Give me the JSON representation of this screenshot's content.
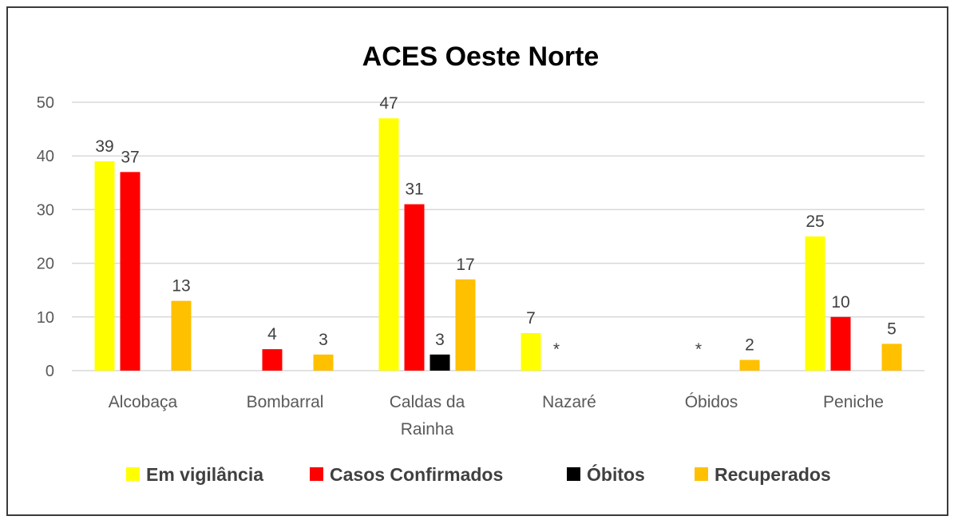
{
  "chart_data": {
    "type": "bar",
    "title": "ACES Oeste Norte",
    "xlabel": "",
    "ylabel": "",
    "ylim": [
      0,
      50
    ],
    "yticks": [
      0,
      10,
      20,
      30,
      40,
      50
    ],
    "grid": true,
    "legend_position": "bottom",
    "categories": [
      "Alcobaça",
      "Bombarral",
      "Caldas da Rainha",
      "Nazaré",
      "Óbidos",
      "Peniche"
    ],
    "series": [
      {
        "name": "Em vigilância",
        "color": "#ffff00",
        "values": [
          39,
          null,
          47,
          7,
          null,
          25
        ]
      },
      {
        "name": "Casos Confirmados",
        "color": "#ff0000",
        "values": [
          37,
          4,
          31,
          null,
          null,
          10
        ]
      },
      {
        "name": "Óbitos",
        "color": "#000000",
        "values": [
          null,
          null,
          3,
          null,
          null,
          null
        ]
      },
      {
        "name": "Recuperados",
        "color": "#ffc000",
        "values": [
          13,
          3,
          17,
          null,
          2,
          5
        ]
      }
    ],
    "annotations": [
      {
        "category": "Nazaré",
        "series": "Casos Confirmados",
        "text": "*"
      },
      {
        "category": "Óbidos",
        "series": "Casos Confirmados",
        "text": "*"
      }
    ]
  }
}
